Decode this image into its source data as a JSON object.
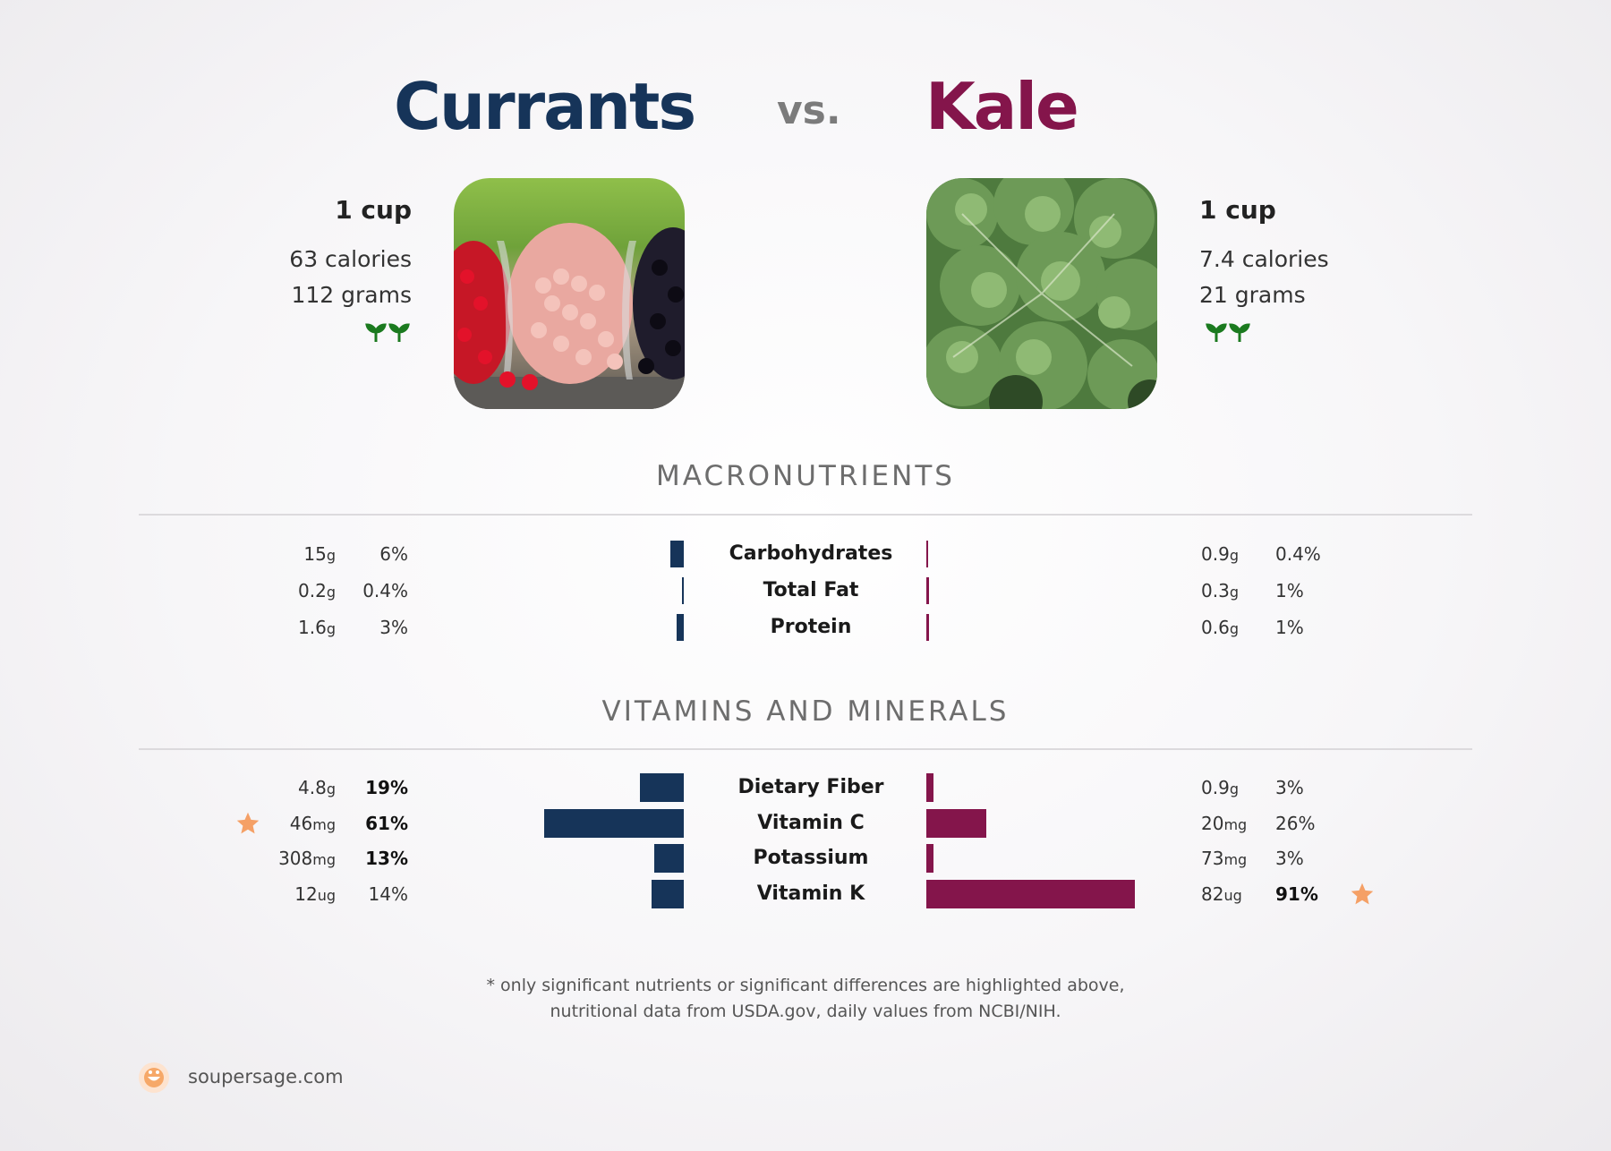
{
  "header": {
    "left_title": "Currants",
    "vs_label": "vs.",
    "right_title": "Kale"
  },
  "left_food": {
    "serving": "1 cup",
    "calories": "63 calories",
    "grams": "112 grams",
    "image": "currants-photo",
    "badge": "sprout-icon"
  },
  "right_food": {
    "serving": "1 cup",
    "calories": "7.4 calories",
    "grams": "21 grams",
    "image": "kale-photo",
    "badge": "sprout-icon"
  },
  "sections": {
    "macros_title": "MACRONUTRIENTS",
    "vitamins_title": "VITAMINS AND MINERALS"
  },
  "colors": {
    "left": "#163459",
    "right": "#84154b",
    "star": "#f5a066",
    "sprout": "#1b7a1f"
  },
  "chart_data": {
    "type": "bar",
    "subtype": "diverging-comparison",
    "series": [
      {
        "name": "Currants",
        "color": "#163459"
      },
      {
        "name": "Kale",
        "color": "#84154b"
      }
    ],
    "macronutrients": [
      {
        "name": "Carbohydrates",
        "left": {
          "amount": "15",
          "unit": "g",
          "pct": "6%",
          "pct_value": 6,
          "bold": false
        },
        "right": {
          "amount": "0.9",
          "unit": "g",
          "pct": "0.4%",
          "pct_value": 0.4,
          "bold": false
        }
      },
      {
        "name": "Total Fat",
        "left": {
          "amount": "0.2",
          "unit": "g",
          "pct": "0.4%",
          "pct_value": 0.4,
          "bold": false
        },
        "right": {
          "amount": "0.3",
          "unit": "g",
          "pct": "1%",
          "pct_value": 1,
          "bold": false
        }
      },
      {
        "name": "Protein",
        "left": {
          "amount": "1.6",
          "unit": "g",
          "pct": "3%",
          "pct_value": 3,
          "bold": false
        },
        "right": {
          "amount": "0.6",
          "unit": "g",
          "pct": "1%",
          "pct_value": 1,
          "bold": false
        }
      }
    ],
    "vitamins": [
      {
        "name": "Dietary Fiber",
        "left": {
          "amount": "4.8",
          "unit": "g",
          "pct": "19%",
          "pct_value": 19,
          "bold": true,
          "star": false
        },
        "right": {
          "amount": "0.9",
          "unit": "g",
          "pct": "3%",
          "pct_value": 3,
          "bold": false,
          "star": false
        }
      },
      {
        "name": "Vitamin C",
        "left": {
          "amount": "46",
          "unit": "mg",
          "pct": "61%",
          "pct_value": 61,
          "bold": true,
          "star": true
        },
        "right": {
          "amount": "20",
          "unit": "mg",
          "pct": "26%",
          "pct_value": 26,
          "bold": false,
          "star": false
        }
      },
      {
        "name": "Potassium",
        "left": {
          "amount": "308",
          "unit": "mg",
          "pct": "13%",
          "pct_value": 13,
          "bold": true,
          "star": false
        },
        "right": {
          "amount": "73",
          "unit": "mg",
          "pct": "3%",
          "pct_value": 3,
          "bold": false,
          "star": false
        }
      },
      {
        "name": "Vitamin K",
        "left": {
          "amount": "12",
          "unit": "ug",
          "pct": "14%",
          "pct_value": 14,
          "bold": false,
          "star": false
        },
        "right": {
          "amount": "82",
          "unit": "ug",
          "pct": "91%",
          "pct_value": 91,
          "bold": true,
          "star": true
        }
      }
    ]
  },
  "footnote": {
    "line1": "* only significant nutrients or significant differences are highlighted above,",
    "line2": "nutritional data from USDA.gov, daily values from NCBI/NIH."
  },
  "brand": {
    "name": "soupersage.com",
    "icon": "soupersage-logo-icon"
  }
}
